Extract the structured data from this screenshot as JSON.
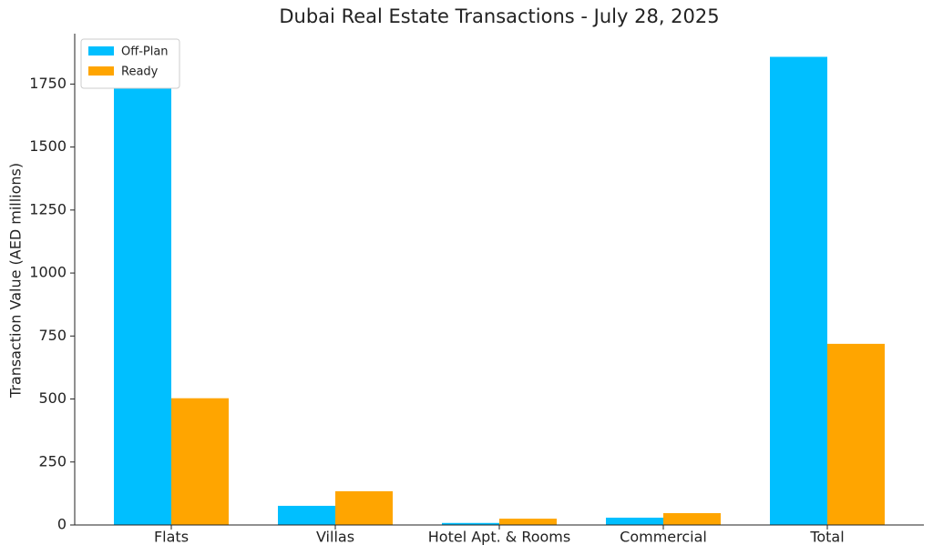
{
  "chart_data": {
    "type": "bar",
    "title": "Dubai Real Estate Transactions - July 28, 2025",
    "y_label": "Transaction Value (AED millions)",
    "categories": [
      "Flats",
      "Villas",
      "Hotel Apt. & Rooms",
      "Commercial",
      "Total"
    ],
    "series": [
      {
        "name": "Off-Plan",
        "color": "#00bfff",
        "values": [
          1740,
          76,
          8,
          29,
          1858
        ]
      },
      {
        "name": "Ready",
        "color": "#ffa500",
        "values": [
          503,
          134,
          25,
          47,
          719
        ]
      }
    ],
    "ylim": [
      0,
      1950
    ],
    "yticks": [
      0,
      250,
      500,
      750,
      1000,
      1250,
      1500,
      1750
    ],
    "grid": false,
    "legend": "upper left"
  }
}
